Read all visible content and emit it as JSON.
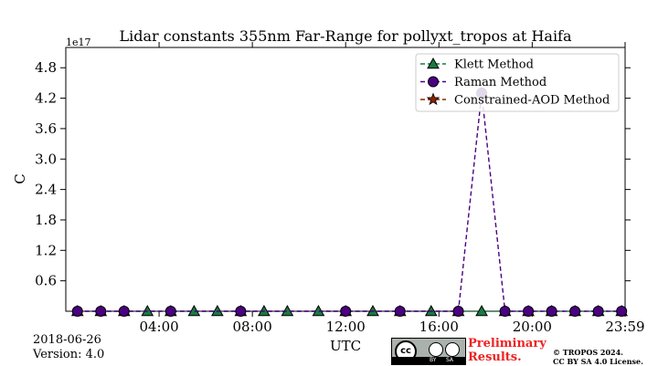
{
  "chart_data": {
    "type": "line",
    "title": "Lidar constants 355nm Far-Range for pollyxt_tropos at Haifa",
    "xlabel": "UTC",
    "ylabel": "C",
    "y_offset_label": "1e17",
    "xlim": [
      "00:00",
      "23:59"
    ],
    "ylim": [
      0,
      5.2
    ],
    "y_ticks": [
      0.6,
      1.2,
      1.8,
      2.4,
      3.0,
      3.6,
      4.2,
      4.8
    ],
    "y_tick_labels": [
      "0.6",
      "1.2",
      "1.8",
      "2.4",
      "3.0",
      "3.6",
      "4.2",
      "4.8"
    ],
    "x_ticks": [
      "04:00",
      "08:00",
      "12:00",
      "16:00",
      "20:00",
      "23:59"
    ],
    "grid": false,
    "legend_position": "top-right",
    "series": [
      {
        "name": "Klett Method",
        "color": "#1a7a40",
        "marker": "triangle",
        "x": [
          "00:30",
          "01:30",
          "02:30",
          "03:30",
          "04:30",
          "05:30",
          "06:30",
          "07:30",
          "08:30",
          "09:30",
          "10:50",
          "12:00",
          "13:10",
          "14:20",
          "15:40",
          "16:50",
          "17:50",
          "18:50",
          "19:50",
          "20:50",
          "21:50",
          "22:50",
          "23:50"
        ],
        "values": [
          0,
          0,
          0,
          0,
          0,
          0,
          0,
          0,
          0,
          0,
          0,
          0,
          0,
          0,
          0,
          0,
          0,
          0,
          0,
          0,
          0,
          0,
          0
        ]
      },
      {
        "name": "Raman Method",
        "color": "#4b0082",
        "marker": "circle",
        "x": [
          "00:30",
          "01:30",
          "02:30",
          "04:30",
          "07:30",
          "12:00",
          "14:20",
          "16:50",
          "17:50",
          "18:50",
          "19:50",
          "20:50",
          "21:50",
          "22:50",
          "23:50"
        ],
        "values": [
          0,
          0,
          0,
          0,
          0,
          0,
          0,
          0,
          4.3,
          0,
          0,
          0,
          0,
          0,
          0
        ]
      },
      {
        "name": "Constrained-AOD Method",
        "color": "#8b2500",
        "marker": "star",
        "x": [],
        "values": []
      }
    ]
  },
  "footer": {
    "date": "2018-06-26",
    "version": "Version: 4.0",
    "preliminary_line1": "Preliminary",
    "preliminary_line2": "Results.",
    "copyright_line1": "© TROPOS 2024.",
    "copyright_line2": "CC BY SA 4.0 License.",
    "badge_cc": "cc",
    "badge_by": "BY",
    "badge_sa": "SA"
  }
}
